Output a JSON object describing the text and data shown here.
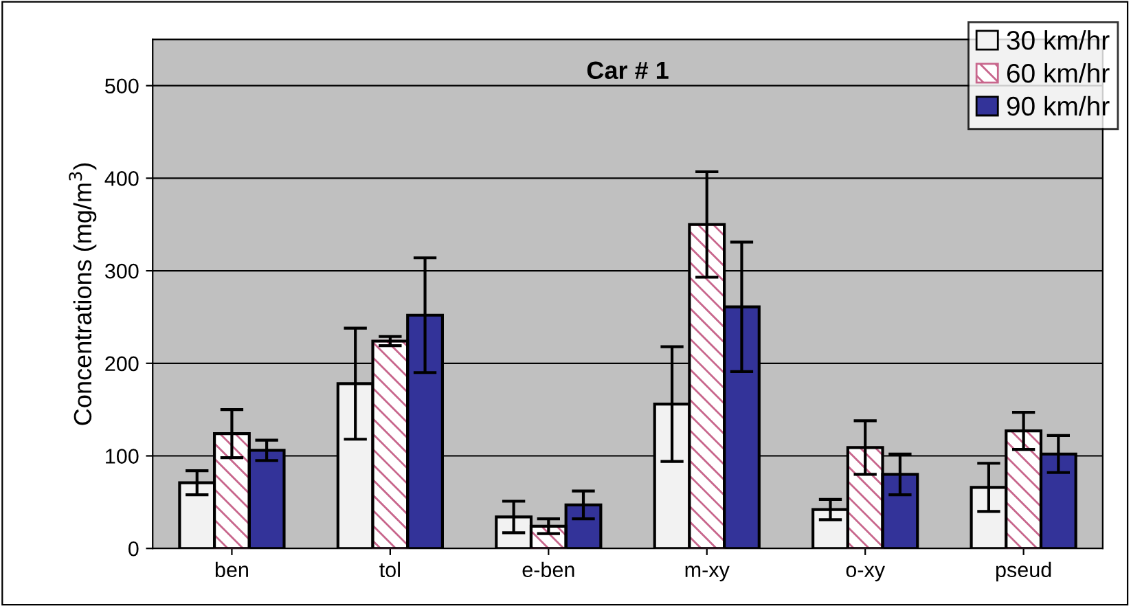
{
  "chart_data": {
    "type": "bar",
    "title": "Car # 1",
    "ylabel": "Concentrations (mg/m$^{3}$)",
    "categories": [
      "ben",
      "tol",
      "e-ben",
      "m-xy",
      "o-xy",
      "pseud"
    ],
    "series": [
      {
        "name": "30 km/hr",
        "color": "#f2f2f2",
        "values": [
          71,
          178,
          34,
          156,
          42,
          66
        ],
        "errors": [
          13,
          60,
          17,
          62,
          11,
          26
        ]
      },
      {
        "name": "60 km/hr",
        "color": "#c8668c",
        "values": [
          124,
          224,
          24,
          350,
          109,
          127
        ],
        "errors": [
          26,
          5,
          8,
          57,
          29,
          20
        ]
      },
      {
        "name": "90 km/hr",
        "color": "#333399",
        "values": [
          106,
          252,
          47,
          261,
          80,
          102
        ],
        "errors": [
          11,
          62,
          15,
          70,
          22,
          20
        ]
      }
    ],
    "ylim": [
      0,
      550
    ],
    "yticks": [
      0,
      100,
      200,
      300,
      400,
      500
    ],
    "grid": "y",
    "legend": "top right"
  }
}
